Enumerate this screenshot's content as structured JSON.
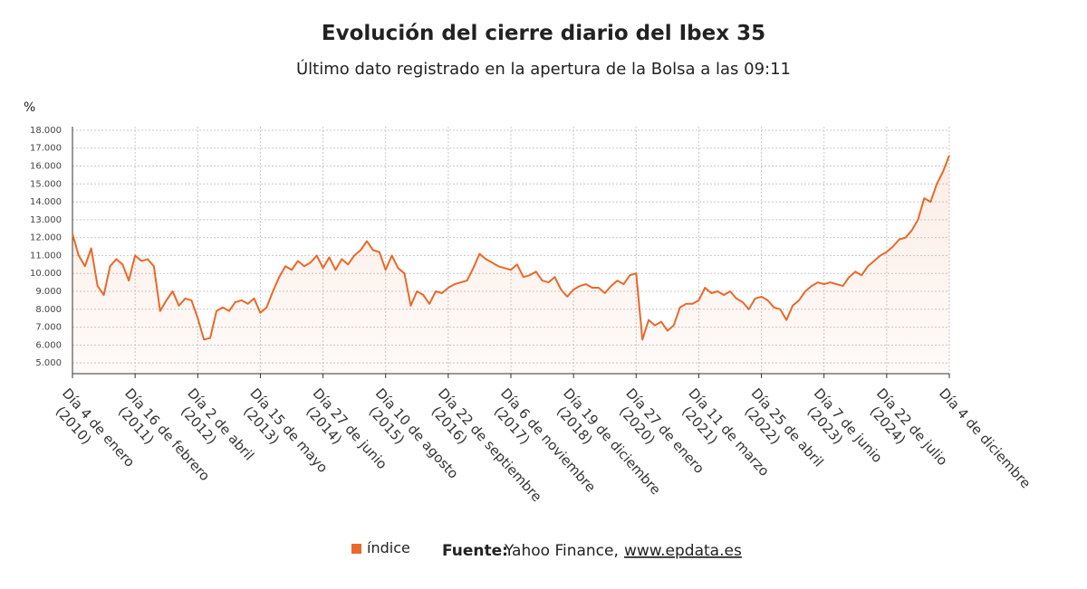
{
  "chart_data": {
    "type": "line",
    "title": "Evolución del cierre diario del Ibex 35",
    "subtitle": "Último dato registrado en la apertura de la Bolsa a las 09:11",
    "y_label": "%",
    "source_label": "Fuente:",
    "source_text": "Yahoo Finance,",
    "source_link": "www.epdata.es",
    "ylim": [
      4400,
      18200
    ],
    "yticks": [
      {
        "value": 5000,
        "label": "5.000"
      },
      {
        "value": 6000,
        "label": "6.000"
      },
      {
        "value": 7000,
        "label": "7.000"
      },
      {
        "value": 8000,
        "label": "8.000"
      },
      {
        "value": 9000,
        "label": "9.000"
      },
      {
        "value": 10000,
        "label": "10.000"
      },
      {
        "value": 11000,
        "label": "11.000"
      },
      {
        "value": 12000,
        "label": "12.000"
      },
      {
        "value": 13000,
        "label": "13.000"
      },
      {
        "value": 14000,
        "label": "14.000"
      },
      {
        "value": 15000,
        "label": "15.000"
      },
      {
        "value": 16000,
        "label": "16.000"
      },
      {
        "value": 17000,
        "label": "17.000"
      },
      {
        "value": 18000,
        "label": "18.000"
      }
    ],
    "grid": true,
    "categories": [
      "Día 4 de enero\n(2010)",
      null,
      null,
      null,
      null,
      null,
      null,
      null,
      null,
      null,
      "Día 16 de febrero\n(2011)",
      null,
      null,
      null,
      null,
      null,
      null,
      null,
      null,
      null,
      "Día 2 de abril\n(2012)",
      null,
      null,
      null,
      null,
      null,
      null,
      null,
      null,
      null,
      "Día 15 de mayo\n(2013)",
      null,
      null,
      null,
      null,
      null,
      null,
      null,
      null,
      null,
      "Día 27 de junio\n(2014)",
      null,
      null,
      null,
      null,
      null,
      null,
      null,
      null,
      null,
      "Día 10 de agosto\n(2015)",
      null,
      null,
      null,
      null,
      null,
      null,
      null,
      null,
      null,
      "Día 22 de septiembre\n(2016)",
      null,
      null,
      null,
      null,
      null,
      null,
      null,
      null,
      null,
      "Día 6 de noviembre\n(2017)",
      null,
      null,
      null,
      null,
      null,
      null,
      null,
      null,
      null,
      "Día 19 de diciembre\n(2018)",
      null,
      null,
      null,
      null,
      null,
      null,
      null,
      null,
      null,
      "Día 27 de enero\n(2020)",
      null,
      null,
      null,
      null,
      null,
      null,
      null,
      null,
      null,
      "Día 11 de marzo\n(2021)",
      null,
      null,
      null,
      null,
      null,
      null,
      null,
      null,
      null,
      "Día 25 de abril\n(2022)",
      null,
      null,
      null,
      null,
      null,
      null,
      null,
      null,
      null,
      "Día 7 de junio\n(2023)",
      null,
      null,
      null,
      null,
      null,
      null,
      null,
      null,
      null,
      "Día 22 de julio\n(2024)",
      null,
      null,
      null,
      null,
      null,
      null,
      null,
      null,
      null,
      "Día 4 de diciembre"
    ],
    "series": [
      {
        "name": "índice",
        "color": "#e8692a",
        "values": [
          12200,
          11000,
          10400,
          11400,
          9300,
          8800,
          10400,
          10800,
          10500,
          9600,
          11000,
          10700,
          10800,
          10400,
          7900,
          8500,
          9000,
          8200,
          8600,
          8500,
          7500,
          6300,
          6400,
          7900,
          8100,
          7900,
          8400,
          8500,
          8300,
          8600,
          7800,
          8100,
          9000,
          9800,
          10400,
          10200,
          10700,
          10400,
          10600,
          11000,
          10300,
          10900,
          10200,
          10800,
          10500,
          11000,
          11300,
          11800,
          11300,
          11200,
          10200,
          11000,
          10300,
          10000,
          8200,
          9000,
          8800,
          8300,
          9000,
          8900,
          9200,
          9400,
          9500,
          9600,
          10300,
          11100,
          10800,
          10600,
          10400,
          10300,
          10200,
          10500,
          9800,
          9900,
          10100,
          9600,
          9500,
          9800,
          9100,
          8700,
          9100,
          9300,
          9400,
          9200,
          9200,
          8900,
          9300,
          9600,
          9400,
          9900,
          10000,
          6300,
          7400,
          7100,
          7300,
          6800,
          7100,
          8100,
          8300,
          8300,
          8500,
          9200,
          8900,
          9000,
          8800,
          9000,
          8600,
          8400,
          8000,
          8600,
          8700,
          8500,
          8100,
          8000,
          7400,
          8200,
          8500,
          9000,
          9300,
          9500,
          9400,
          9500,
          9400,
          9300,
          9800,
          10100,
          9900,
          10400,
          10700,
          11000,
          11200,
          11500,
          11900,
          12000,
          12400,
          13000,
          14200,
          14000,
          15000,
          15700,
          16600
        ]
      }
    ]
  }
}
